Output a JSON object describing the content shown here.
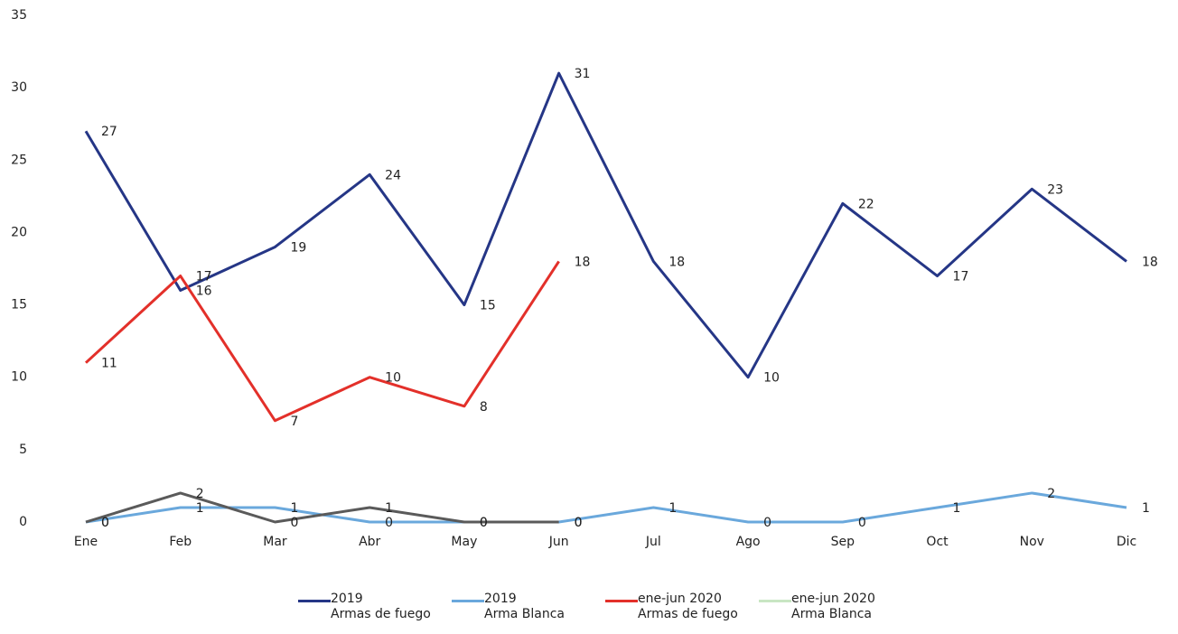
{
  "chart_data": {
    "type": "line",
    "categories": [
      "Ene",
      "Feb",
      "Mar",
      "Abr",
      "May",
      "Jun",
      "Jul",
      "Ago",
      "Sep",
      "Oct",
      "Nov",
      "Dic"
    ],
    "series": [
      {
        "name": "2019\nArmas de fuego",
        "color": "#253686",
        "values": [
          27,
          16,
          19,
          24,
          15,
          31,
          18,
          10,
          22,
          17,
          23,
          18
        ]
      },
      {
        "name": "2019\nArma Blanca",
        "color": "#6aa8dc",
        "values": [
          0,
          1,
          1,
          0,
          0,
          0,
          1,
          0,
          0,
          1,
          2,
          1
        ]
      },
      {
        "name": "ene-jun 2020\nArmas de fuego",
        "color": "#e3302a",
        "values": [
          11,
          17,
          7,
          10,
          8,
          18,
          null,
          null,
          null,
          null,
          null,
          null
        ]
      },
      {
        "name": "ene-jun 2020\nArma Blanca",
        "color": "#5a5a5a",
        "legend_color": "#c9e6c3",
        "values": [
          0,
          2,
          0,
          1,
          0,
          0,
          null,
          null,
          null,
          null,
          null,
          null
        ]
      }
    ],
    "ylim": [
      0,
      35
    ],
    "yticks": [
      0,
      5,
      10,
      15,
      20,
      25,
      30,
      35
    ],
    "grid": false,
    "legend": "bottom"
  }
}
